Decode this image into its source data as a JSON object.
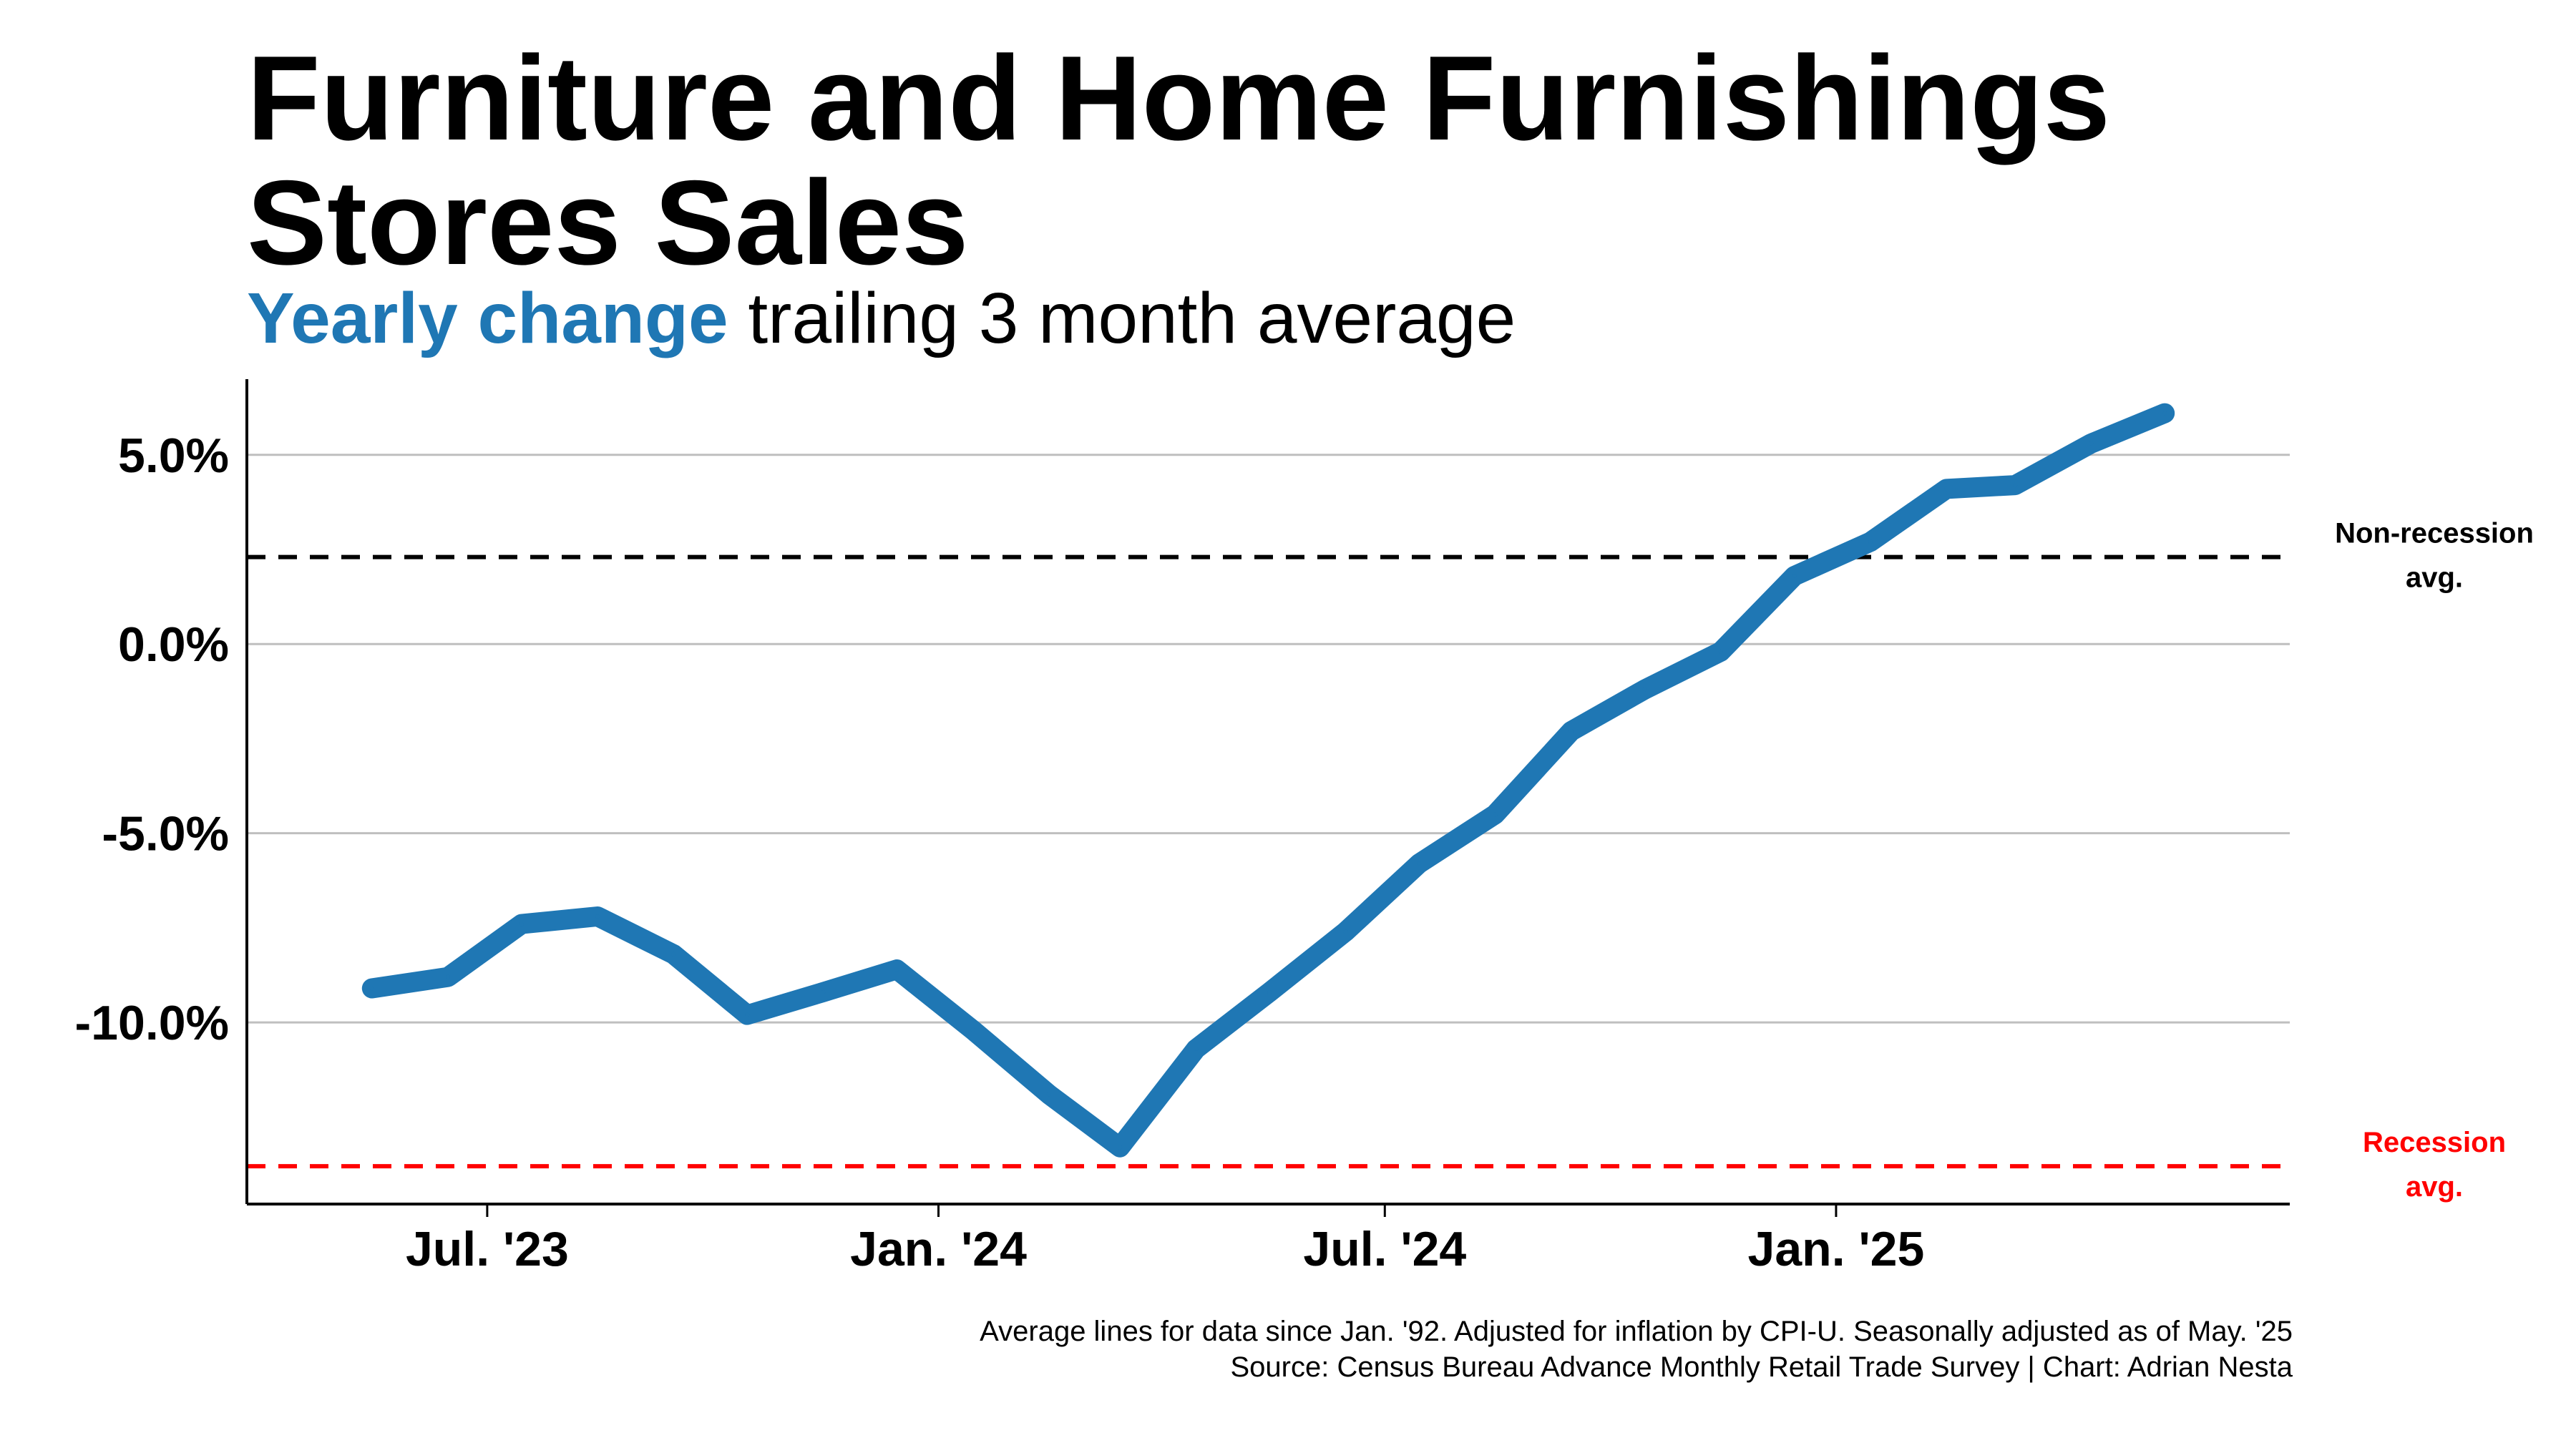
{
  "title": "Furniture and Home Furnishings Stores Sales",
  "subtitle": {
    "highlight": "Yearly change",
    "rest": " trailing 3 month average"
  },
  "footnote": {
    "line1": "Average lines for data since Jan. '92. Adjusted for inflation by CPI-U. Seasonally adjusted as of May. '25",
    "line2": "Source: Census Bureau Advance Monthly Retail Trade Survey | Chart: Adrian Nesta"
  },
  "colors": {
    "series": "#1f77b4",
    "non_recession": "#000000",
    "recession": "#ff0000",
    "grid": "#bfbfbf"
  },
  "chart_data": {
    "type": "line",
    "title": "Furniture and Home Furnishings Stores Sales",
    "subtitle": "Yearly change trailing 3 month average",
    "xlabel": "",
    "ylabel": "",
    "x": [
      "2023-05",
      "2023-06",
      "2023-07",
      "2023-08",
      "2023-09",
      "2023-10",
      "2023-11",
      "2023-12",
      "2024-01",
      "2024-02",
      "2024-03",
      "2024-04",
      "2024-05",
      "2024-06",
      "2024-07",
      "2024-08",
      "2024-09",
      "2024-10",
      "2024-11",
      "2024-12",
      "2025-01",
      "2025-02",
      "2025-03",
      "2025-04",
      "2025-05"
    ],
    "series": [
      {
        "values": [
          -9.1,
          -8.8,
          -7.4,
          -7.2,
          -8.2,
          -9.8,
          -9.2,
          -8.6,
          -10.2,
          -11.9,
          -13.3,
          -10.7,
          -9.2,
          -7.6,
          -5.8,
          -4.5,
          -2.3,
          -1.2,
          -0.2,
          1.8,
          2.7,
          4.1,
          4.2,
          5.3,
          6.1
        ]
      }
    ],
    "reference_lines": [
      {
        "label": "Non-recession avg.",
        "label_lines": [
          "Non-recession",
          "avg."
        ],
        "value": 2.3,
        "color": "#000000"
      },
      {
        "label": "Recession avg.",
        "label_lines": [
          "Recession",
          "avg."
        ],
        "value": -13.8,
        "color": "#ff0000"
      }
    ],
    "ylim": [
      -14.8,
      7.0
    ],
    "yticks": [
      5.0,
      0.0,
      -5.0,
      -10.0
    ],
    "ytick_labels": [
      "5.0%",
      "0.0%",
      "-5.0%",
      "-10.0%"
    ],
    "xlim": [
      "2023-03-25",
      "2025-07-05"
    ],
    "xticks": [
      "2023-07-01",
      "2024-01-01",
      "2024-07-01",
      "2025-01-01"
    ],
    "xtick_labels": [
      "Jul. '23",
      "Jan. '24",
      "Jul. '24",
      "Jan. '25"
    ],
    "grid": "horizontal",
    "legend": "none"
  }
}
